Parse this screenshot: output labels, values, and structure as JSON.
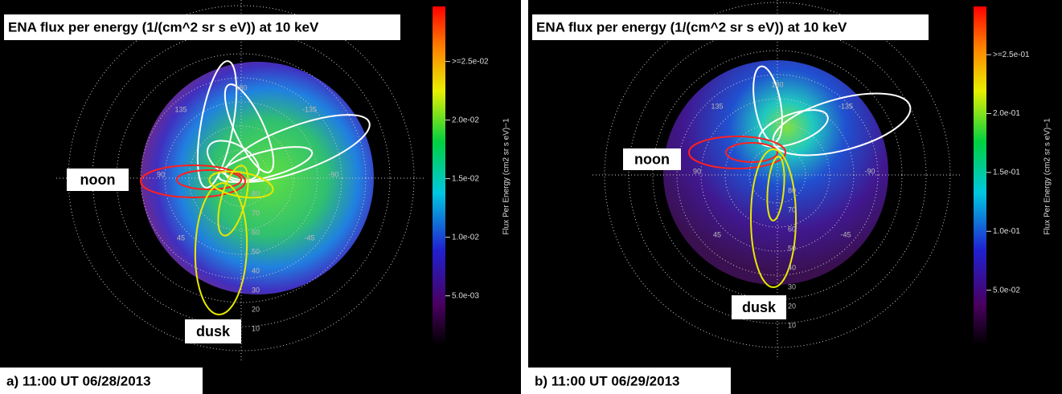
{
  "panels": [
    {
      "title": "ENA flux per energy (1/(cm^2 sr s eV)) at 10 keV",
      "caption": "a) 11:00 UT 06/28/2013",
      "labels": [
        "noon",
        "dusk"
      ],
      "azimuth_labels": [
        "180",
        "135",
        "-135",
        "90",
        "-90",
        "45",
        "-45"
      ],
      "latitude_labels": [
        "80",
        "70",
        "60",
        "50",
        "40",
        "30",
        "20",
        "10"
      ],
      "colorbar": {
        "label": "Flux Per Energy (cm2 sr s eV)−1",
        "lim": [
          0.0008,
          0.0297
        ],
        "ticks": [
          {
            "value": 0.025,
            "label": ">=2.5e-02"
          },
          {
            "value": 0.02,
            "label": "2.0e-02"
          },
          {
            "value": 0.015,
            "label": "1.5e-02"
          },
          {
            "value": 0.01,
            "label": "1.0e-02"
          },
          {
            "value": 0.005,
            "label": "5.0e-03"
          }
        ]
      }
    },
    {
      "title": "ENA flux per energy (1/(cm^2 sr s eV)) at 10 keV",
      "caption": "b) 11:00 UT 06/29/2013",
      "labels": [
        "noon",
        "dusk"
      ],
      "azimuth_labels": [
        "180",
        "135",
        "-135",
        "90",
        "-90",
        "45",
        "-45"
      ],
      "latitude_labels": [
        "80",
        "70",
        "60",
        "50",
        "40",
        "30",
        "20",
        "10"
      ],
      "colorbar": {
        "label": "Flux Per Energy (cm2 sr s eV)−1",
        "lim": [
          0.0034,
          0.291
        ],
        "ticks": [
          {
            "value": 0.25,
            "label": ">=2.5e-01"
          },
          {
            "value": 0.2,
            "label": "2.0e-01"
          },
          {
            "value": 0.15,
            "label": "1.5e-01"
          },
          {
            "value": 0.1,
            "label": "1.0e-01"
          },
          {
            "value": 0.05,
            "label": "5.0e-02"
          }
        ]
      }
    }
  ]
}
